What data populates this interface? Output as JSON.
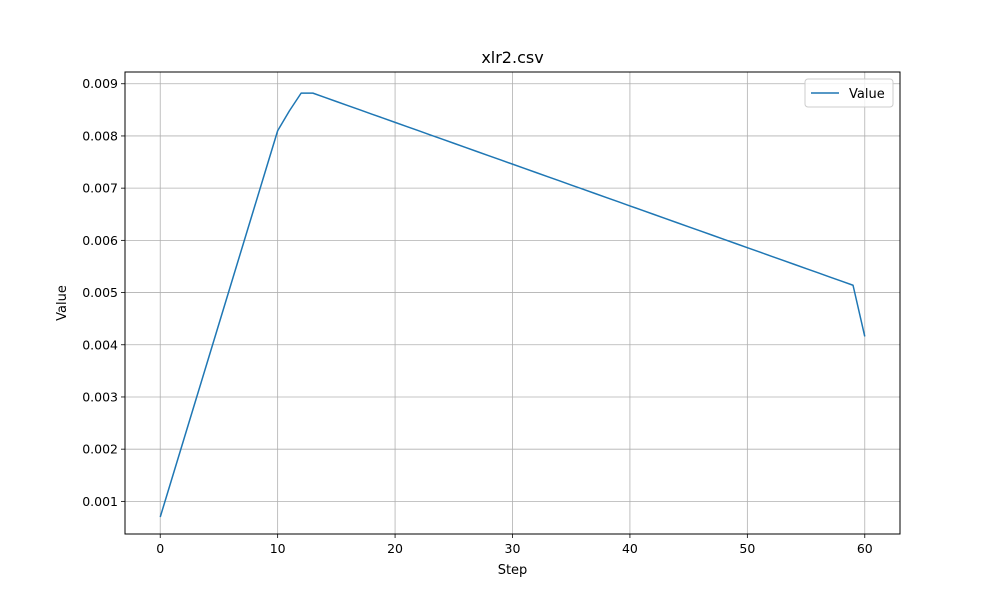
{
  "chart_data": {
    "type": "line",
    "title": "xlr2.csv",
    "xlabel": "Step",
    "ylabel": "Value",
    "xlim": [
      -3,
      63
    ],
    "ylim": [
      0.000375,
      0.009225
    ],
    "x_ticks": [
      0,
      10,
      20,
      30,
      40,
      50,
      60
    ],
    "x_tick_labels": [
      "0",
      "10",
      "20",
      "30",
      "40",
      "50",
      "60"
    ],
    "y_ticks": [
      0.001,
      0.002,
      0.003,
      0.004,
      0.005,
      0.006,
      0.007,
      0.008,
      0.009
    ],
    "y_tick_labels": [
      "0.001",
      "0.002",
      "0.003",
      "0.004",
      "0.005",
      "0.006",
      "0.007",
      "0.008",
      "0.009"
    ],
    "grid": true,
    "legend_position": "top-right",
    "series": [
      {
        "name": "Value",
        "color": "#1f77b4",
        "x": [
          0,
          1,
          2,
          3,
          4,
          5,
          6,
          7,
          8,
          9,
          10,
          11,
          12,
          13,
          14,
          15,
          16,
          17,
          18,
          19,
          20,
          21,
          22,
          23,
          24,
          25,
          26,
          27,
          28,
          29,
          30,
          31,
          32,
          33,
          34,
          35,
          36,
          37,
          38,
          39,
          40,
          41,
          42,
          43,
          44,
          45,
          46,
          47,
          48,
          49,
          50,
          51,
          52,
          53,
          54,
          55,
          56,
          57,
          58,
          59,
          60
        ],
        "y": [
          0.0007,
          0.00144,
          0.00218,
          0.00292,
          0.00366,
          0.0044,
          0.00514,
          0.00588,
          0.00662,
          0.00736,
          0.0081,
          0.00848,
          0.00882,
          0.00882,
          0.00874,
          0.00866,
          0.00858,
          0.0085,
          0.00842,
          0.00834,
          0.00826,
          0.00818,
          0.0081,
          0.00802,
          0.00794,
          0.00786,
          0.00778,
          0.0077,
          0.00762,
          0.00754,
          0.00746,
          0.00738,
          0.0073,
          0.00722,
          0.00714,
          0.00706,
          0.00698,
          0.0069,
          0.00682,
          0.00674,
          0.00666,
          0.00658,
          0.0065,
          0.00642,
          0.00634,
          0.00626,
          0.00618,
          0.0061,
          0.00602,
          0.00594,
          0.00586,
          0.00578,
          0.0057,
          0.00562,
          0.00554,
          0.00546,
          0.00538,
          0.0053,
          0.00522,
          0.00514,
          0.00416
        ]
      }
    ]
  }
}
